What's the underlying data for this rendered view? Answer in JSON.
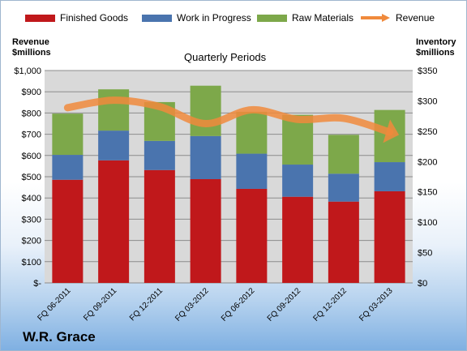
{
  "chart_data": {
    "type": "bar",
    "title": "Quarterly Periods",
    "brand": "W.R. Grace",
    "categories": [
      "FQ 06-2011",
      "FQ 09-2011",
      "FQ 12-2011",
      "FQ 03-2012",
      "FQ 06-2012",
      "FQ 09-2012",
      "FQ 12-2012",
      "FQ 03-2013"
    ],
    "stacked": true,
    "series": [
      {
        "name": "Finished Goods",
        "color": "#c0181b",
        "values": [
          170,
          202,
          186,
          171,
          155,
          142,
          134,
          151
        ]
      },
      {
        "name": "Work in Progress",
        "color": "#4a74ae",
        "values": [
          41,
          49,
          48,
          71,
          58,
          53,
          46,
          48
        ]
      },
      {
        "name": "Raw Materials",
        "color": "#7da84a",
        "values": [
          68,
          68,
          64,
          83,
          69,
          82,
          64,
          86
        ]
      }
    ],
    "line_series": {
      "name": "Revenue",
      "color": "#f08a3c",
      "values": [
        825,
        860,
        830,
        750,
        815,
        770,
        775,
        710
      ]
    },
    "ylabel_left": "Revenue\n$millions",
    "ylabel_right": "Inventory\n$millions",
    "ylim_left": [
      0,
      1000
    ],
    "ylim_right": [
      0,
      350
    ],
    "left_ticks": [
      "$-",
      "$100",
      "$200",
      "$300",
      "$400",
      "$500",
      "$600",
      "$700",
      "$800",
      "$900",
      "$1,000"
    ],
    "right_ticks": [
      "$0",
      "$50",
      "$100",
      "$150",
      "$200",
      "$250",
      "$300",
      "$350"
    ],
    "grid": true,
    "legend_position": "top"
  }
}
